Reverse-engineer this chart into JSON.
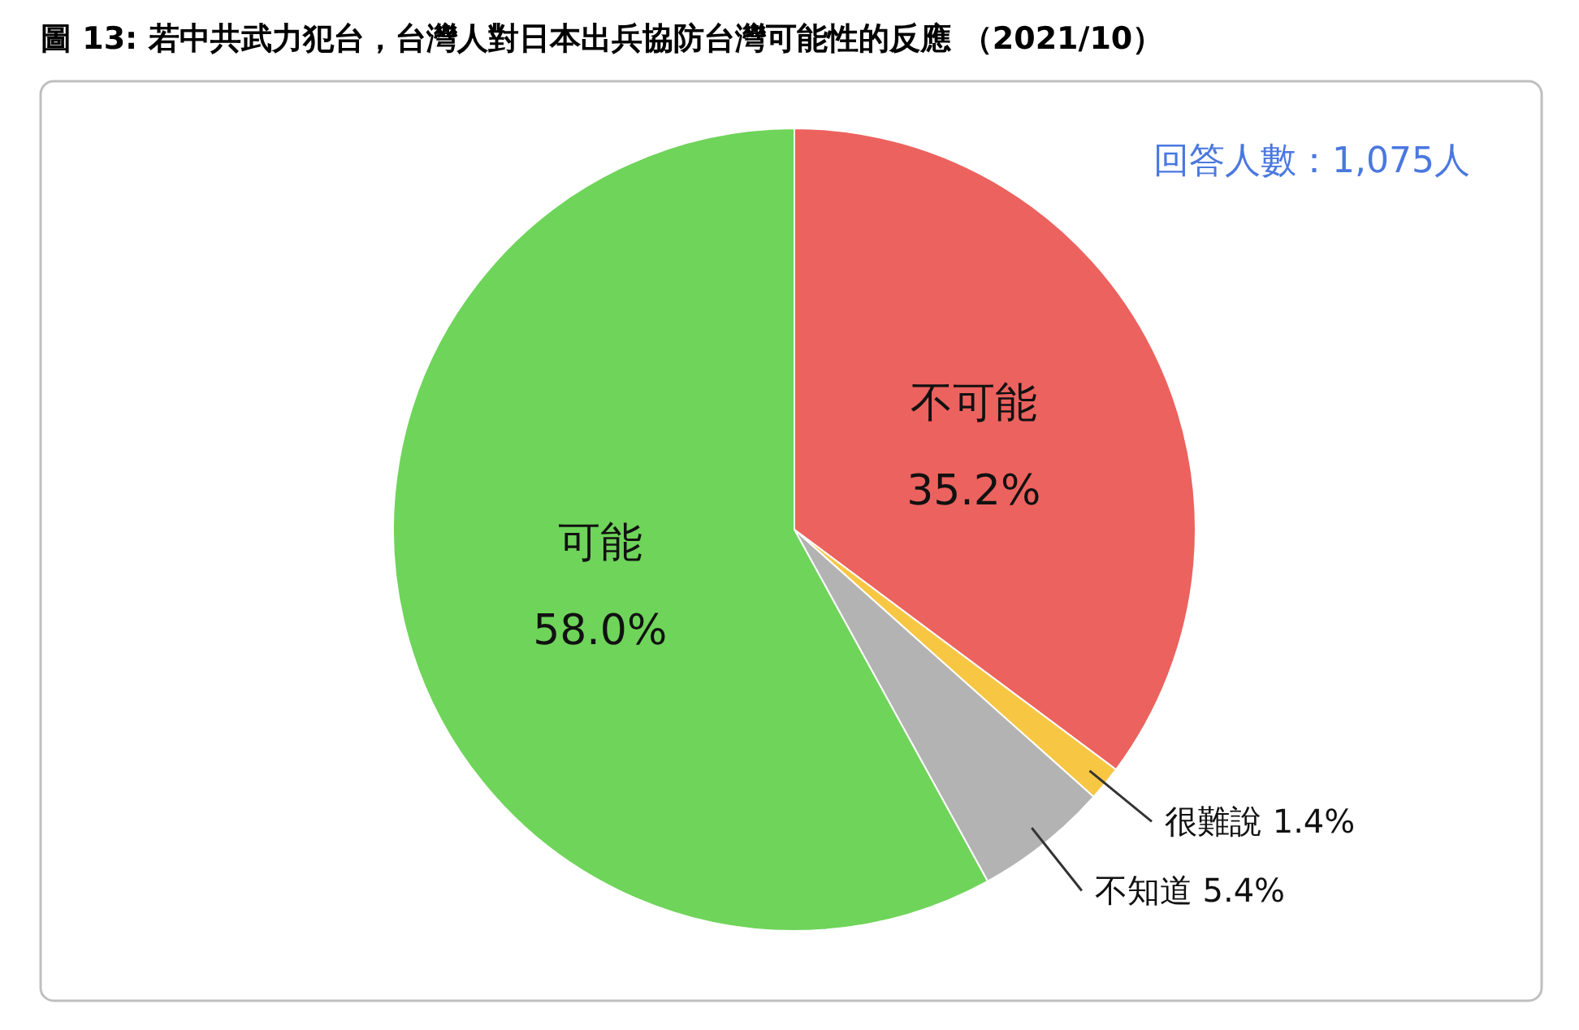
{
  "chart_data": {
    "type": "pie",
    "title": "圖 13: 若中共武力犯台，台灣人對日本出兵協防台灣可能性的反應 （2021/10）",
    "categories": [
      "不可能",
      "很難說",
      "不知道",
      "可能"
    ],
    "values": [
      35.2,
      1.4,
      5.4,
      58.0
    ],
    "colors": [
      "#ec625e",
      "#f7c744",
      "#b3b3b3",
      "#6fd45a"
    ],
    "value_labels": [
      "35.2%",
      "1.4%",
      "5.4%",
      "58.0%"
    ],
    "annotations": [
      "回答人數：1,075人"
    ]
  }
}
